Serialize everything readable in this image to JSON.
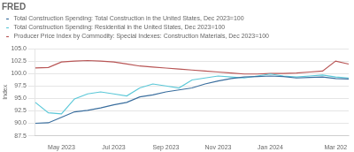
{
  "chart_data": {
    "type": "line",
    "title": "FRED",
    "ylabel": "Index",
    "categories": [
      null,
      null,
      "May 2023",
      null,
      null,
      null,
      "Jul 2023",
      null,
      null,
      null,
      "Sep 2023",
      null,
      null,
      null,
      "Nov 2023",
      null,
      null,
      null,
      "Jan 2024",
      null,
      null,
      null,
      null,
      "Mar 202",
      null
    ],
    "series": [
      {
        "name": "Total Construction Spending: Total Construction in the United States, Dec 2023=100",
        "color": "#3a6e9e",
        "values": [
          90.0,
          90.1,
          91.2,
          92.3,
          92.6,
          93.1,
          93.7,
          94.2,
          95.3,
          95.7,
          96.3,
          96.7,
          97.1,
          97.9,
          98.5,
          99.0,
          99.3,
          99.4,
          99.5,
          99.4,
          99.1,
          99.2,
          99.3,
          99.0,
          98.9
        ]
      },
      {
        "name": "Total Construction Spending: Residential in the United States, Dec 2023=100",
        "color": "#5bc8d8",
        "values": [
          94.2,
          92.1,
          91.9,
          94.9,
          95.9,
          96.3,
          95.9,
          95.5,
          97.1,
          97.9,
          97.5,
          97.1,
          98.7,
          99.1,
          99.5,
          99.3,
          99.1,
          99.5,
          99.9,
          99.5,
          99.3,
          99.5,
          99.7,
          99.3,
          99.1
        ]
      },
      {
        "name": "Producer Price Index by Commodity: Special Indexes: Construction Materials, Dec 2023=100",
        "color": "#b85555",
        "values": [
          101.1,
          101.2,
          102.3,
          102.5,
          102.6,
          102.5,
          102.3,
          101.9,
          101.5,
          101.3,
          101.1,
          100.9,
          100.7,
          100.5,
          100.3,
          100.1,
          99.9,
          99.9,
          100.0,
          100.0,
          100.1,
          100.3,
          100.5,
          102.5,
          101.9
        ]
      }
    ],
    "ylim": [
      87.5,
      105.0
    ],
    "yticks": [
      87.5,
      {
        "value": 90.0,
        "label": "90.0"
      },
      92.5,
      {
        "value": 95.0,
        "label": "95.0"
      },
      97.5,
      {
        "value": 100.0,
        "label": "100.0"
      },
      102.5,
      {
        "value": 105.0,
        "label": "105.0"
      }
    ],
    "grid": "y",
    "legend": "upper left"
  }
}
